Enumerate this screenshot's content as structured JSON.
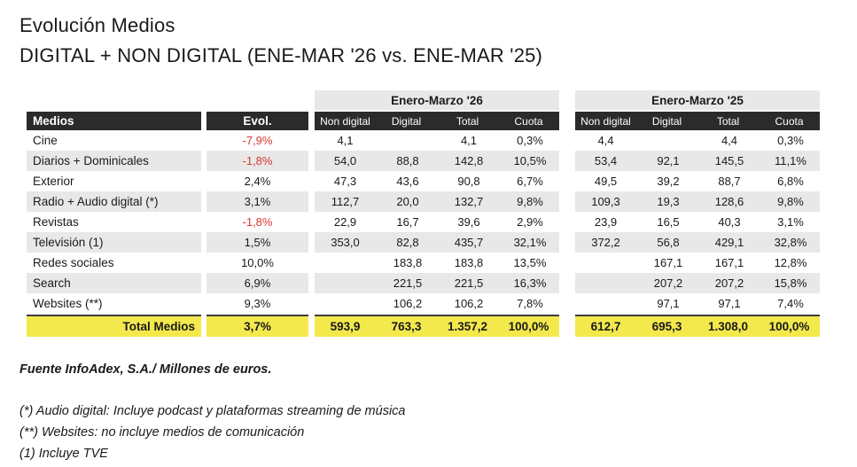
{
  "title": "Evolución Medios",
  "subtitle": "DIGITAL + NON DIGITAL (ENE-MAR '26 vs. ENE-MAR '25)",
  "colors": {
    "header_black": "#2b2b2b",
    "stripe_gray": "#e8e8e8",
    "total_yellow": "#f3e94c",
    "negative_red": "#da3832"
  },
  "table": {
    "medios_header": "Medios",
    "evol_header": "Evol.",
    "groups": [
      {
        "label": "Enero-Marzo '26",
        "columns": [
          "Non digital",
          "Digital",
          "Total",
          "Cuota"
        ]
      },
      {
        "label": "Enero-Marzo '25",
        "columns": [
          "Non digital",
          "Digital",
          "Total",
          "Cuota"
        ]
      }
    ],
    "rows": [
      {
        "medio": "Cine",
        "evol": "-7,9%",
        "negative": true,
        "y26": [
          "4,1",
          "",
          "4,1",
          "0,3%"
        ],
        "y25": [
          "4,4",
          "",
          "4,4",
          "0,3%"
        ]
      },
      {
        "medio": "Diarios + Dominicales",
        "evol": "-1,8%",
        "negative": true,
        "y26": [
          "54,0",
          "88,8",
          "142,8",
          "10,5%"
        ],
        "y25": [
          "53,4",
          "92,1",
          "145,5",
          "11,1%"
        ]
      },
      {
        "medio": "Exterior",
        "evol": "2,4%",
        "negative": false,
        "y26": [
          "47,3",
          "43,6",
          "90,8",
          "6,7%"
        ],
        "y25": [
          "49,5",
          "39,2",
          "88,7",
          "6,8%"
        ]
      },
      {
        "medio": "Radio + Audio digital (*)",
        "evol": "3,1%",
        "negative": false,
        "y26": [
          "112,7",
          "20,0",
          "132,7",
          "9,8%"
        ],
        "y25": [
          "109,3",
          "19,3",
          "128,6",
          "9,8%"
        ]
      },
      {
        "medio": "Revistas",
        "evol": "-1,8%",
        "negative": true,
        "y26": [
          "22,9",
          "16,7",
          "39,6",
          "2,9%"
        ],
        "y25": [
          "23,9",
          "16,5",
          "40,3",
          "3,1%"
        ]
      },
      {
        "medio": "Televisión (1)",
        "evol": "1,5%",
        "negative": false,
        "y26": [
          "353,0",
          "82,8",
          "435,7",
          "32,1%"
        ],
        "y25": [
          "372,2",
          "56,8",
          "429,1",
          "32,8%"
        ]
      },
      {
        "medio": "Redes sociales",
        "evol": "10,0%",
        "negative": false,
        "y26": [
          "",
          "183,8",
          "183,8",
          "13,5%"
        ],
        "y25": [
          "",
          "167,1",
          "167,1",
          "12,8%"
        ]
      },
      {
        "medio": "Search",
        "evol": "6,9%",
        "negative": false,
        "y26": [
          "",
          "221,5",
          "221,5",
          "16,3%"
        ],
        "y25": [
          "",
          "207,2",
          "207,2",
          "15,8%"
        ]
      },
      {
        "medio": "Websites (**)",
        "evol": "9,3%",
        "negative": false,
        "y26": [
          "",
          "106,2",
          "106,2",
          "7,8%"
        ],
        "y25": [
          "",
          "97,1",
          "97,1",
          "7,4%"
        ]
      }
    ],
    "total": {
      "medio": "Total Medios",
      "evol": "3,7%",
      "y26": [
        "593,9",
        "763,3",
        "1.357,2",
        "100,0%"
      ],
      "y25": [
        "612,7",
        "695,3",
        "1.308,0",
        "100,0%"
      ]
    }
  },
  "footer": {
    "source": "Fuente InfoAdex, S.A./ Millones de euros.",
    "notes": [
      "(*) Audio digital: Incluye podcast y plataformas streaming de música",
      "(**) Websites: no incluye medios de comunicación",
      "(1) Incluye TVE"
    ]
  },
  "chart_data": {
    "type": "table",
    "title": "Evolución Medios — DIGITAL + NON DIGITAL (ENE-MAR '26 vs. ENE-MAR '25)",
    "unit": "Millones de euros",
    "source": "InfoAdex, S.A.",
    "categories": [
      "Cine",
      "Diarios + Dominicales",
      "Exterior",
      "Radio + Audio digital",
      "Revistas",
      "Televisión",
      "Redes sociales",
      "Search",
      "Websites"
    ],
    "series": [
      {
        "name": "Evol. %",
        "values": [
          -7.9,
          -1.8,
          2.4,
          3.1,
          -1.8,
          1.5,
          10.0,
          6.9,
          9.3
        ]
      },
      {
        "name": "EM'26 Non digital",
        "values": [
          4.1,
          54.0,
          47.3,
          112.7,
          22.9,
          353.0,
          null,
          null,
          null
        ]
      },
      {
        "name": "EM'26 Digital",
        "values": [
          null,
          88.8,
          43.6,
          20.0,
          16.7,
          82.8,
          183.8,
          221.5,
          106.2
        ]
      },
      {
        "name": "EM'26 Total",
        "values": [
          4.1,
          142.8,
          90.8,
          132.7,
          39.6,
          435.7,
          183.8,
          221.5,
          106.2
        ]
      },
      {
        "name": "EM'26 Cuota %",
        "values": [
          0.3,
          10.5,
          6.7,
          9.8,
          2.9,
          32.1,
          13.5,
          16.3,
          7.8
        ]
      },
      {
        "name": "EM'25 Non digital",
        "values": [
          4.4,
          53.4,
          49.5,
          109.3,
          23.9,
          372.2,
          null,
          null,
          null
        ]
      },
      {
        "name": "EM'25 Digital",
        "values": [
          null,
          92.1,
          39.2,
          19.3,
          16.5,
          56.8,
          167.1,
          207.2,
          97.1
        ]
      },
      {
        "name": "EM'25 Total",
        "values": [
          4.4,
          145.5,
          88.7,
          128.6,
          40.3,
          429.1,
          167.1,
          207.2,
          97.1
        ]
      },
      {
        "name": "EM'25 Cuota %",
        "values": [
          0.3,
          11.1,
          6.8,
          9.8,
          3.1,
          32.8,
          12.8,
          15.8,
          7.4
        ]
      }
    ],
    "totals": {
      "evol_pct": 3.7,
      "em26_non_digital": 593.9,
      "em26_digital": 763.3,
      "em26_total": 1357.2,
      "em26_cuota_pct": 100.0,
      "em25_non_digital": 612.7,
      "em25_digital": 695.3,
      "em25_total": 1308.0,
      "em25_cuota_pct": 100.0
    }
  }
}
